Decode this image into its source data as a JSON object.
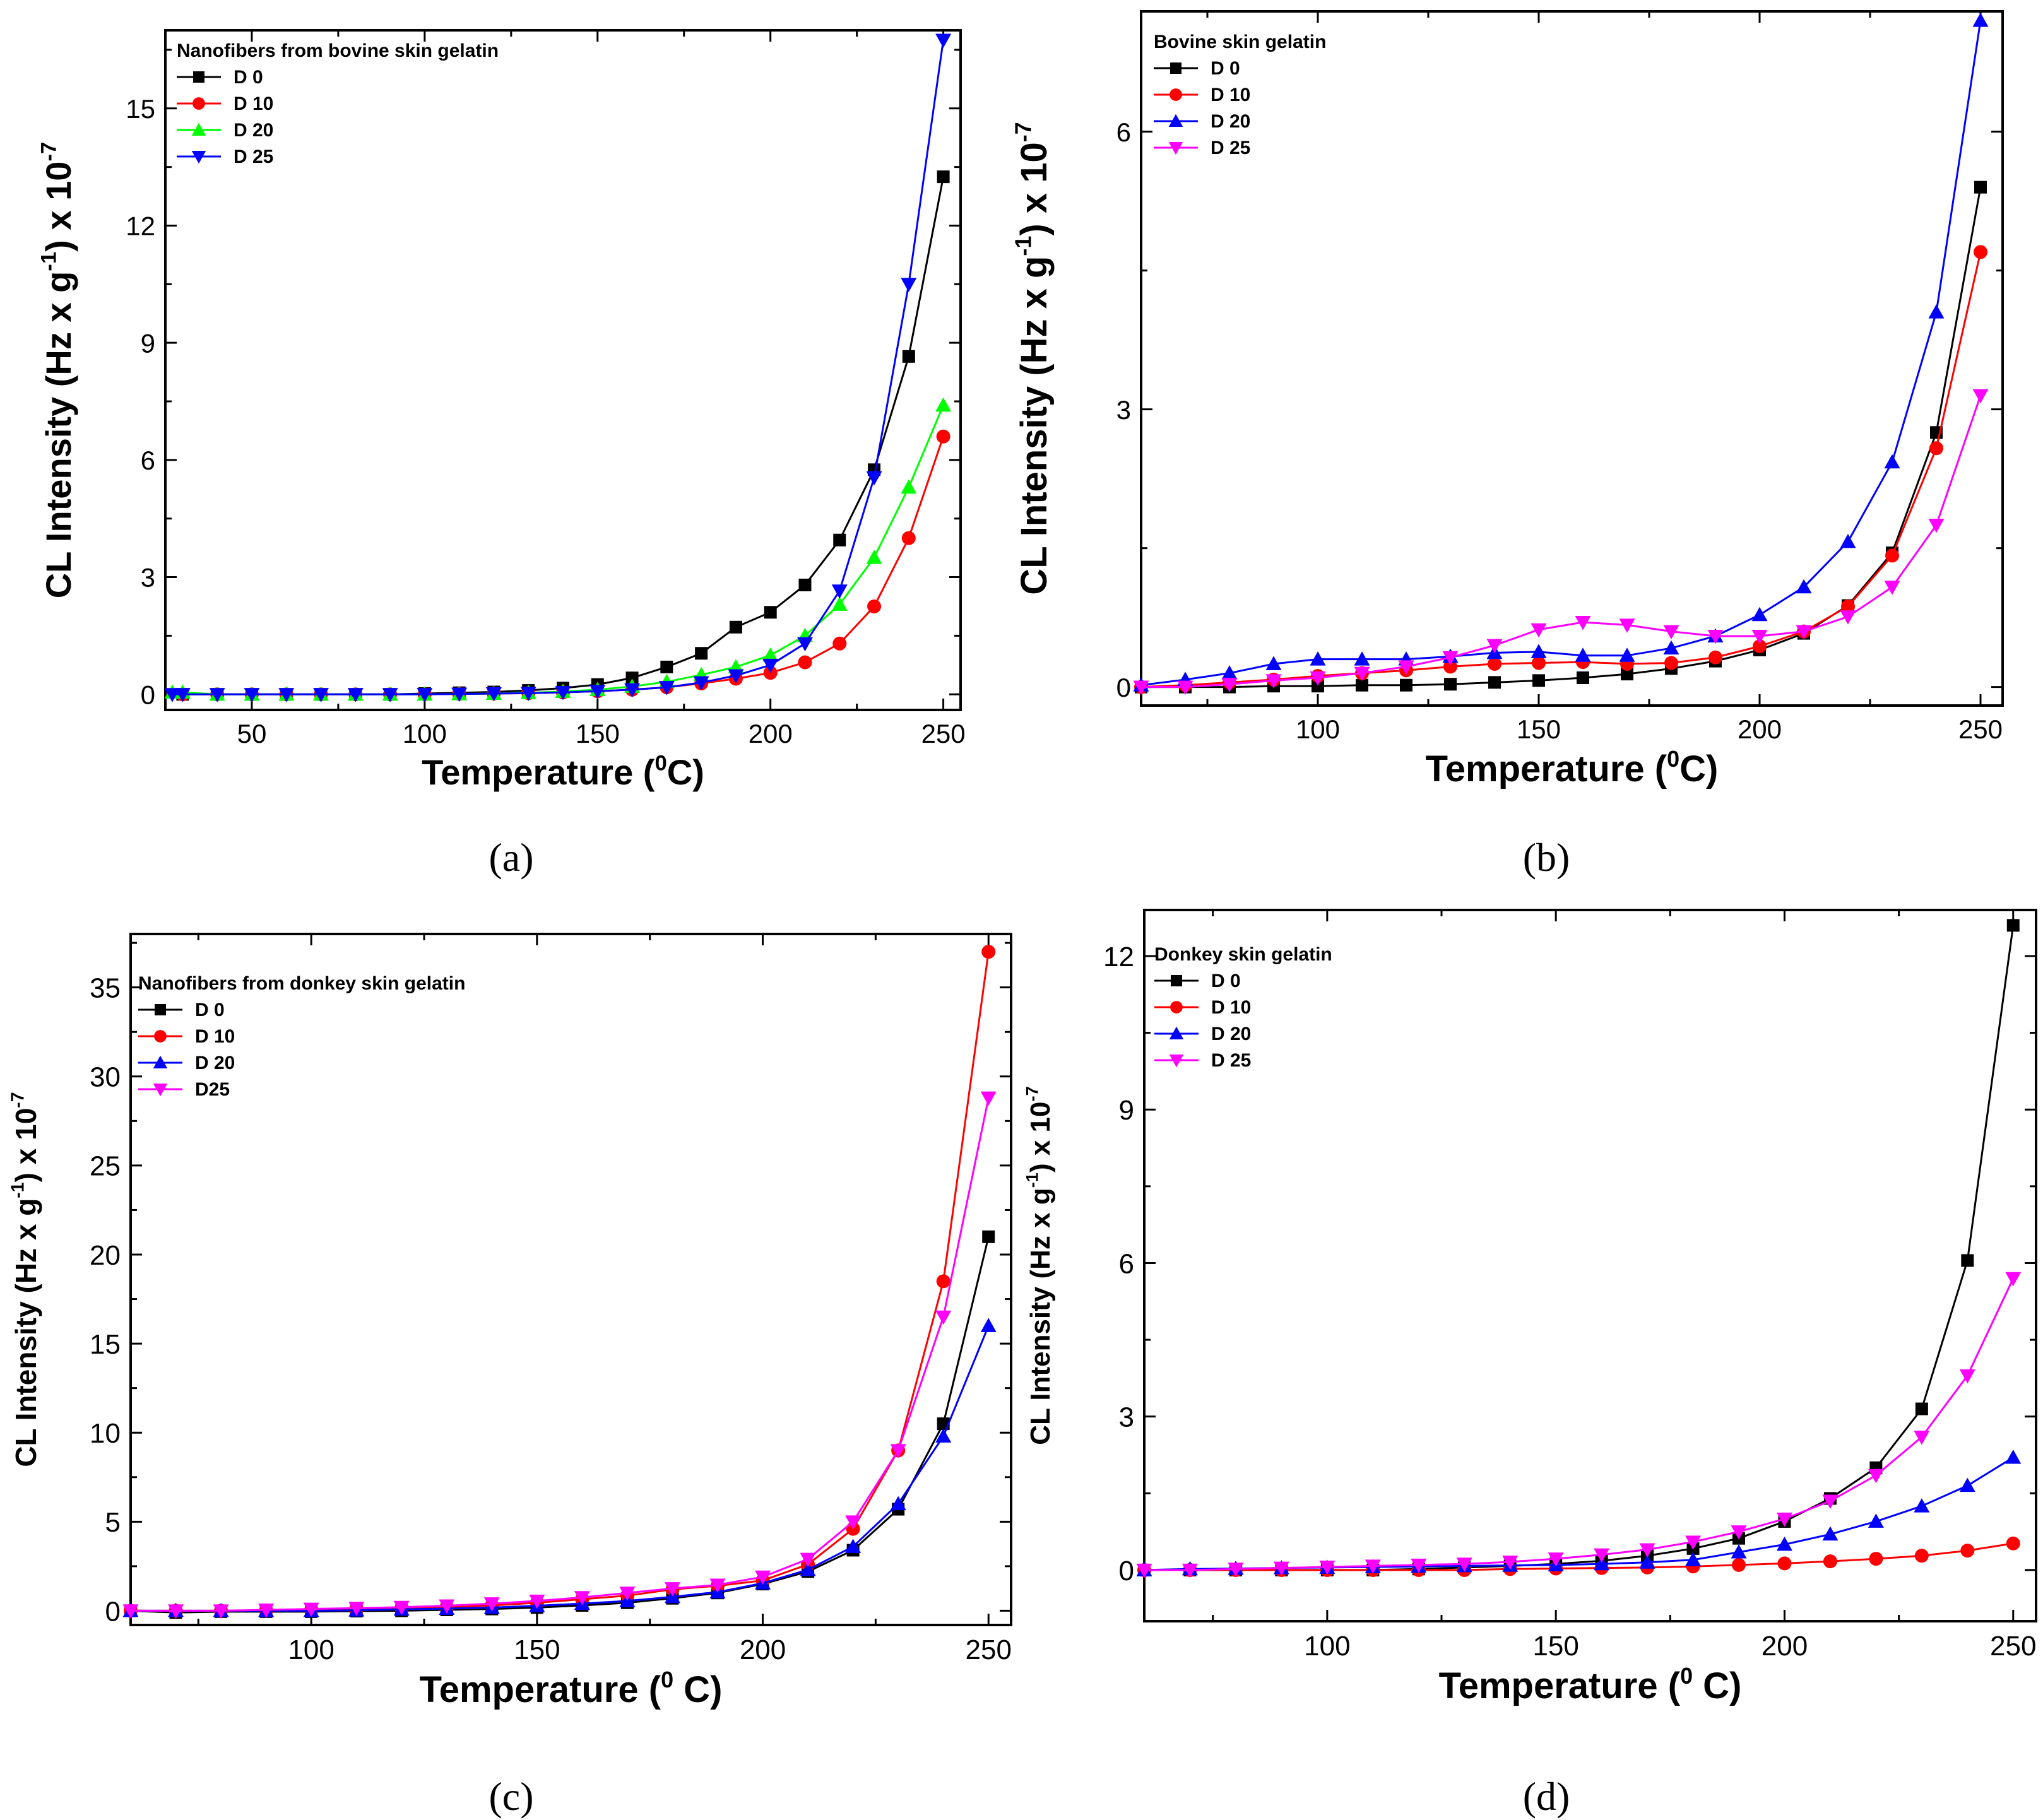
{
  "figure": {
    "captions": [
      "(a)",
      "(b)",
      "(c)",
      "(d)"
    ]
  },
  "chart_data": [
    {
      "type": "line",
      "panel": "(a)",
      "title": "Nanofibers from bovine skin gelatin",
      "xlabel_main": "Temperature (",
      "xlabel_sup": "0",
      "xlabel_end": "C)",
      "ylabel_main": "CL Intensity (Hz x g",
      "ylabel_sup1": "-1",
      "ylabel_mid": ") x 10",
      "ylabel_sup2": "-7",
      "xlim": [
        25,
        255
      ],
      "ylim": [
        -0.4,
        17.0
      ],
      "xticks": [
        50,
        100,
        150,
        200,
        250
      ],
      "yticks": [
        0,
        3,
        6,
        9,
        12,
        15
      ],
      "legend_position": "top-left",
      "x": [
        30,
        40,
        50,
        60,
        70,
        80,
        90,
        100,
        110,
        120,
        130,
        140,
        150,
        160,
        170,
        180,
        190,
        200,
        210,
        220,
        230,
        240,
        250
      ],
      "series": [
        {
          "name": "D 0",
          "color": "#000000",
          "marker": "square",
          "x": [
            30,
            40,
            50,
            60,
            70,
            80,
            90,
            100,
            110,
            120,
            130,
            140,
            150,
            160,
            170,
            180,
            190,
            200,
            210,
            220,
            230,
            240,
            250
          ],
          "values": [
            0.0,
            0.0,
            0.0,
            0.0,
            0.0,
            0.0,
            0.0,
            0.02,
            0.04,
            0.06,
            0.1,
            0.16,
            0.25,
            0.42,
            0.7,
            1.05,
            1.72,
            2.1,
            2.8,
            3.95,
            5.75,
            8.65,
            13.25
          ]
        },
        {
          "name": "D 10",
          "color": "#ff0000",
          "marker": "circle",
          "x": [
            30,
            40,
            50,
            60,
            70,
            80,
            90,
            100,
            110,
            120,
            130,
            140,
            150,
            160,
            170,
            180,
            190,
            200,
            210,
            220,
            230,
            240,
            250
          ],
          "values": [
            0.0,
            0.0,
            0.0,
            0.0,
            0.0,
            0.0,
            0.0,
            0.0,
            0.01,
            0.02,
            0.03,
            0.05,
            0.08,
            0.12,
            0.18,
            0.28,
            0.4,
            0.55,
            0.82,
            1.3,
            2.25,
            4.0,
            6.6
          ]
        },
        {
          "name": "D 20",
          "color": "#00ff00",
          "marker": "triangle-up",
          "x": [
            27,
            30,
            40,
            50,
            60,
            70,
            80,
            90,
            100,
            110,
            120,
            130,
            140,
            150,
            160,
            170,
            180,
            190,
            200,
            210,
            220,
            230,
            240,
            250
          ],
          "values": [
            0.05,
            0.05,
            0.0,
            0.0,
            0.0,
            0.0,
            0.0,
            0.0,
            0.0,
            0.01,
            0.02,
            0.04,
            0.07,
            0.12,
            0.2,
            0.32,
            0.5,
            0.7,
            1.0,
            1.5,
            2.3,
            3.5,
            5.3,
            7.4
          ]
        },
        {
          "name": "D 25",
          "color": "#0000ff",
          "marker": "triangle-down",
          "x": [
            27,
            30,
            40,
            50,
            60,
            70,
            80,
            90,
            100,
            110,
            120,
            130,
            140,
            150,
            160,
            170,
            180,
            190,
            200,
            210,
            220,
            230,
            240,
            250
          ],
          "values": [
            0.0,
            0.0,
            0.0,
            0.0,
            0.0,
            0.0,
            0.0,
            0.0,
            0.0,
            0.01,
            0.02,
            0.03,
            0.05,
            0.08,
            0.12,
            0.18,
            0.3,
            0.48,
            0.75,
            1.3,
            2.65,
            5.55,
            10.5,
            16.75
          ]
        }
      ]
    },
    {
      "type": "line",
      "panel": "(b)",
      "title": "Bovine skin gelatin",
      "xlabel_main": "Temperature (",
      "xlabel_sup": "0",
      "xlabel_end": "C)",
      "ylabel_main": "CL Intensity (Hz x g",
      "ylabel_sup1": "-1",
      "ylabel_mid": ") x 10",
      "ylabel_sup2": "-7",
      "xlim": [
        60,
        255
      ],
      "ylim": [
        -0.2,
        7.3
      ],
      "xticks": [
        100,
        150,
        200,
        250
      ],
      "yticks": [
        0,
        3,
        6
      ],
      "legend_position": "top-left",
      "series": [
        {
          "name": "D 0",
          "color": "#000000",
          "marker": "square",
          "x": [
            60,
            70,
            80,
            90,
            100,
            110,
            120,
            130,
            140,
            150,
            160,
            170,
            180,
            190,
            200,
            210,
            220,
            230,
            240,
            250
          ],
          "values": [
            0.0,
            0.0,
            0.0,
            0.01,
            0.01,
            0.02,
            0.02,
            0.03,
            0.05,
            0.07,
            0.1,
            0.14,
            0.2,
            0.28,
            0.4,
            0.58,
            0.88,
            1.45,
            2.75,
            5.4
          ]
        },
        {
          "name": "D 10",
          "color": "#ff0000",
          "marker": "circle",
          "x": [
            60,
            70,
            80,
            90,
            100,
            110,
            120,
            130,
            140,
            150,
            160,
            170,
            180,
            190,
            200,
            210,
            220,
            230,
            240,
            250
          ],
          "values": [
            0.0,
            0.02,
            0.05,
            0.08,
            0.12,
            0.15,
            0.18,
            0.22,
            0.25,
            0.26,
            0.27,
            0.25,
            0.26,
            0.32,
            0.44,
            0.6,
            0.87,
            1.42,
            2.58,
            4.7
          ]
        },
        {
          "name": "D 20",
          "color": "#0000ff",
          "marker": "triangle-up",
          "x": [
            60,
            70,
            80,
            90,
            100,
            110,
            120,
            130,
            140,
            150,
            160,
            170,
            180,
            190,
            200,
            210,
            220,
            230,
            240,
            250
          ],
          "values": [
            0.02,
            0.08,
            0.15,
            0.25,
            0.3,
            0.3,
            0.3,
            0.33,
            0.37,
            0.38,
            0.34,
            0.34,
            0.42,
            0.55,
            0.78,
            1.08,
            1.57,
            2.43,
            4.05,
            7.2
          ]
        },
        {
          "name": "D 25",
          "color": "#ff00ff",
          "marker": "triangle-down",
          "x": [
            60,
            70,
            80,
            90,
            100,
            110,
            120,
            130,
            140,
            150,
            160,
            170,
            180,
            190,
            200,
            210,
            220,
            230,
            240,
            250
          ],
          "values": [
            0.0,
            0.0,
            0.03,
            0.07,
            0.1,
            0.15,
            0.22,
            0.32,
            0.45,
            0.62,
            0.7,
            0.67,
            0.6,
            0.55,
            0.55,
            0.6,
            0.76,
            1.08,
            1.75,
            3.15
          ]
        }
      ]
    },
    {
      "type": "line",
      "panel": "(c)",
      "title": "Nanofibers from donkey skin gelatin",
      "xlabel_main": "Temperature (",
      "xlabel_sup": "0",
      "xlabel_end": " C)",
      "ylabel_main": "CL Intensity (Hz x g",
      "ylabel_sup1": "-1",
      "ylabel_mid": ") x 10",
      "ylabel_sup2": "-7",
      "xlim": [
        60,
        255
      ],
      "ylim": [
        -0.8,
        38.0
      ],
      "xticks": [
        100,
        150,
        200,
        250
      ],
      "yticks": [
        0,
        5,
        10,
        15,
        20,
        25,
        30,
        35
      ],
      "legend_position": "top-left",
      "series": [
        {
          "name": "D 0",
          "color": "#000000",
          "marker": "square",
          "x": [
            60,
            70,
            80,
            90,
            100,
            110,
            120,
            130,
            140,
            150,
            160,
            170,
            180,
            190,
            200,
            210,
            220,
            230,
            240,
            250
          ],
          "values": [
            0.0,
            -0.1,
            -0.05,
            -0.05,
            -0.05,
            -0.02,
            0.0,
            0.05,
            0.1,
            0.18,
            0.3,
            0.45,
            0.7,
            1.0,
            1.5,
            2.2,
            3.4,
            5.7,
            10.5,
            21.0
          ]
        },
        {
          "name": "D 10",
          "color": "#ff0000",
          "marker": "circle",
          "x": [
            60,
            70,
            80,
            90,
            100,
            110,
            120,
            130,
            140,
            150,
            160,
            170,
            180,
            190,
            200,
            210,
            220,
            230,
            240,
            250
          ],
          "values": [
            0.0,
            0.0,
            0.0,
            0.02,
            0.05,
            0.1,
            0.15,
            0.2,
            0.3,
            0.45,
            0.65,
            0.85,
            1.2,
            1.4,
            1.7,
            2.6,
            4.6,
            9.0,
            18.5,
            37.0
          ]
        },
        {
          "name": "D 20",
          "color": "#0000ff",
          "marker": "triangle-up",
          "x": [
            60,
            70,
            80,
            90,
            100,
            110,
            120,
            130,
            140,
            150,
            160,
            170,
            180,
            190,
            200,
            210,
            220,
            230,
            240,
            250
          ],
          "values": [
            0.0,
            0.0,
            0.0,
            0.0,
            0.0,
            0.03,
            0.08,
            0.12,
            0.18,
            0.28,
            0.4,
            0.55,
            0.78,
            1.05,
            1.55,
            2.3,
            3.6,
            6.0,
            9.8,
            16.0
          ]
        },
        {
          "name": "D25",
          "color": "#ff00ff",
          "marker": "triangle-down",
          "x": [
            60,
            70,
            80,
            90,
            100,
            110,
            120,
            130,
            140,
            150,
            160,
            170,
            180,
            190,
            200,
            210,
            220,
            230,
            240,
            250
          ],
          "values": [
            0.0,
            0.0,
            0.0,
            0.05,
            0.1,
            0.15,
            0.2,
            0.28,
            0.4,
            0.55,
            0.75,
            1.0,
            1.25,
            1.45,
            1.9,
            2.9,
            5.0,
            9.0,
            16.5,
            28.8
          ]
        }
      ]
    },
    {
      "type": "line",
      "panel": "(d)",
      "title": "Donkey skin gelatin",
      "xlabel_main": "Temperature (",
      "xlabel_sup": "0",
      "xlabel_end": " C)",
      "ylabel_main": "CL Intensity (Hz x g",
      "ylabel_sup1": "-1",
      "ylabel_mid": ") x 10",
      "ylabel_sup2": "-7",
      "xlim": [
        60,
        255
      ],
      "ylim": [
        -1.0,
        12.9
      ],
      "xticks": [
        100,
        150,
        200,
        250
      ],
      "yticks": [
        0,
        3,
        6,
        9,
        12
      ],
      "legend_position": "top-left",
      "series": [
        {
          "name": "D 0",
          "color": "#000000",
          "marker": "square",
          "x": [
            60,
            70,
            80,
            90,
            100,
            110,
            120,
            130,
            140,
            150,
            160,
            170,
            180,
            190,
            200,
            210,
            220,
            230,
            240,
            250
          ],
          "values": [
            0.0,
            0.0,
            0.0,
            0.0,
            0.0,
            0.0,
            0.02,
            0.05,
            0.08,
            0.12,
            0.18,
            0.28,
            0.42,
            0.62,
            0.95,
            1.4,
            2.0,
            3.15,
            6.05,
            12.6
          ]
        },
        {
          "name": "D 10",
          "color": "#ff0000",
          "marker": "circle",
          "x": [
            60,
            70,
            80,
            90,
            100,
            110,
            120,
            130,
            140,
            150,
            160,
            170,
            180,
            190,
            200,
            210,
            220,
            230,
            240,
            250
          ],
          "values": [
            0.0,
            0.0,
            0.0,
            0.0,
            0.0,
            0.0,
            0.0,
            0.0,
            0.02,
            0.03,
            0.04,
            0.05,
            0.07,
            0.1,
            0.13,
            0.17,
            0.22,
            0.28,
            0.38,
            0.52
          ]
        },
        {
          "name": "D 20",
          "color": "#0000ff",
          "marker": "triangle-up",
          "x": [
            60,
            70,
            80,
            90,
            100,
            110,
            120,
            130,
            140,
            150,
            160,
            170,
            180,
            190,
            200,
            210,
            220,
            230,
            240,
            250
          ],
          "values": [
            0.0,
            0.02,
            0.03,
            0.04,
            0.05,
            0.06,
            0.07,
            0.08,
            0.09,
            0.1,
            0.12,
            0.15,
            0.2,
            0.35,
            0.5,
            0.7,
            0.95,
            1.25,
            1.65,
            2.2
          ]
        },
        {
          "name": "D 25",
          "color": "#ff00ff",
          "marker": "triangle-down",
          "x": [
            60,
            70,
            80,
            90,
            100,
            110,
            120,
            130,
            140,
            150,
            160,
            170,
            180,
            190,
            200,
            210,
            220,
            230,
            240,
            250
          ],
          "values": [
            0.0,
            0.0,
            0.02,
            0.04,
            0.06,
            0.08,
            0.1,
            0.12,
            0.16,
            0.22,
            0.3,
            0.4,
            0.55,
            0.75,
            1.0,
            1.35,
            1.85,
            2.6,
            3.8,
            5.7
          ]
        }
      ]
    }
  ]
}
